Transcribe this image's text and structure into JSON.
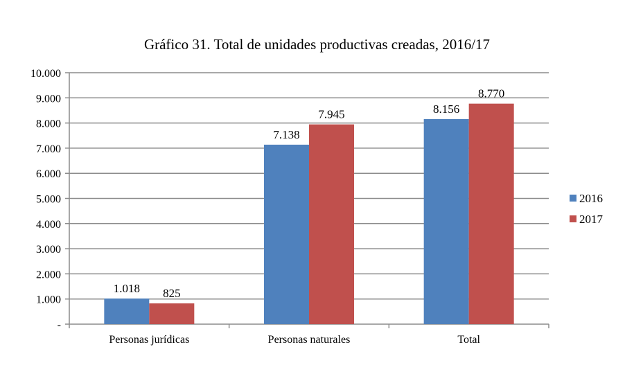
{
  "chart_data": {
    "type": "bar",
    "title": "Gráfico 31. Total de unidades productivas creadas, 2016/17",
    "xlabel": "",
    "ylabel": "",
    "categories": [
      "Personas jurídicas",
      "Personas naturales",
      "Total"
    ],
    "series": [
      {
        "name": "2016",
        "color": "#4F81BD",
        "values": [
          1018,
          7138,
          8156
        ],
        "labels": [
          "1.018",
          "7.138",
          "8.156"
        ]
      },
      {
        "name": "2017",
        "color": "#C0504D",
        "values": [
          825,
          7945,
          8770
        ],
        "labels": [
          "825",
          "7.945",
          "8.770"
        ]
      }
    ],
    "ylim": [
      0,
      10000
    ],
    "yticks": [
      0,
      1000,
      2000,
      3000,
      4000,
      5000,
      6000,
      7000,
      8000,
      9000,
      10000
    ],
    "ytick_labels": [
      "-",
      "1.000",
      "2.000",
      "3.000",
      "4.000",
      "5.000",
      "6.000",
      "7.000",
      "8.000",
      "9.000",
      "10.000"
    ],
    "grid": true,
    "legend_position": "right"
  }
}
